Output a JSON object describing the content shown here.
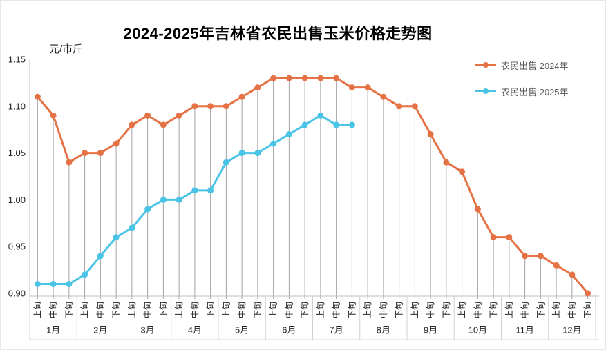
{
  "title": "2024-2025年吉林省农民出售玉米价格走势图",
  "y_axis": {
    "unit_label": "元/市斤",
    "tick_labels": [
      "1.15",
      "1.10",
      "1.05",
      "1.00",
      "0.95",
      "0.90"
    ]
  },
  "legend": [
    {
      "label": "农民出售 2024年",
      "color": "#E57245"
    },
    {
      "label": "农民出售 2025年",
      "color": "#4AC4E6"
    }
  ],
  "colors": {
    "series_2024": "#E57245",
    "series_2025": "#4AC4E6",
    "drop_line": "#A3A3A3",
    "axis_line": "#BFBFBF",
    "separator": "#D0D0D0",
    "tick_text": "#262626"
  },
  "chart_data": {
    "type": "line",
    "title": "2024-2025年吉林省农民出售玉米价格走势图",
    "ylabel": "元/市斤",
    "ylim": [
      0.9,
      1.15
    ],
    "yticks": [
      1.15,
      1.1,
      1.05,
      1.0,
      0.95,
      0.9
    ],
    "grid": "vertical-drop-lines-only",
    "legend_position": "right-top",
    "months": [
      "1月",
      "2月",
      "3月",
      "4月",
      "5月",
      "6月",
      "7月",
      "8月",
      "9月",
      "10月",
      "11月",
      "12月"
    ],
    "periods": [
      "上旬",
      "中旬",
      "下旬"
    ],
    "series": [
      {
        "name": "农民出售 2024年",
        "color": "#E57245",
        "values": [
          1.11,
          1.09,
          1.04,
          1.05,
          1.05,
          1.06,
          1.08,
          1.09,
          1.08,
          1.09,
          1.1,
          1.1,
          1.1,
          1.11,
          1.12,
          1.13,
          1.13,
          1.13,
          1.13,
          1.13,
          1.12,
          1.12,
          1.11,
          1.1,
          1.1,
          1.07,
          1.04,
          1.03,
          0.99,
          0.96,
          0.96,
          0.94,
          0.94,
          0.93,
          0.92,
          0.9
        ]
      },
      {
        "name": "农民出售 2025年",
        "color": "#4AC4E6",
        "values": [
          0.91,
          0.91,
          0.91,
          0.92,
          0.94,
          0.96,
          0.97,
          0.99,
          1.0,
          1.0,
          1.01,
          1.01,
          1.04,
          1.05,
          1.05,
          1.06,
          1.07,
          1.08,
          1.09,
          1.08,
          1.08
        ]
      }
    ]
  }
}
